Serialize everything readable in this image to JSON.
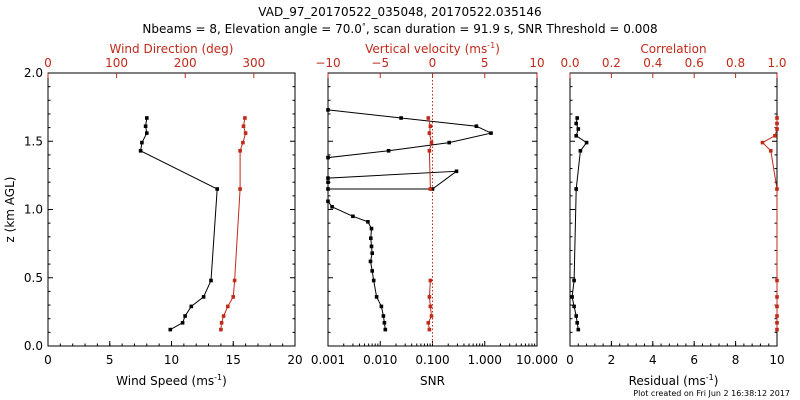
{
  "title": "VAD_97_20170522_035048, 20170522.035146",
  "subtitle_parts": [
    "Nbeams = 8, Elevation angle = 70.0",
    "°",
    ", scan duration = 91.9 s, SNR Threshold = 0.008"
  ],
  "footer": "Plot created on Fri Jun  2 16:38:12 2017",
  "colors": {
    "black": "#000000",
    "red": "#c02a1a"
  },
  "chart_data": [
    {
      "type": "line",
      "panel": "wind",
      "ylabel": "z (km AGL)",
      "ylim": [
        0.0,
        2.0
      ],
      "yticks": [
        "0.0",
        "0.5",
        "1.0",
        "1.5",
        "2.0"
      ],
      "xlabel": "Wind Speed (ms",
      "xlabel_sup": "-1",
      "xlabel_close": ")",
      "xlim": [
        0,
        20
      ],
      "xticks": [
        "0",
        "5",
        "10",
        "15",
        "20"
      ],
      "top_xlabel": "Wind Direction (deg)",
      "top_xlim": [
        0,
        360
      ],
      "top_xticks": [
        "0",
        "100",
        "200",
        "300"
      ],
      "series": [
        {
          "axis": "bottom",
          "color": "#000000",
          "connected": true,
          "x": [
            9.9,
            10.9,
            11.1,
            11.6,
            12.6,
            13.2,
            13.7,
            7.5,
            7.6,
            8.0,
            7.9,
            8.0
          ],
          "y": [
            0.12,
            0.17,
            0.22,
            0.29,
            0.36,
            0.48,
            1.15,
            1.43,
            1.49,
            1.56,
            1.61,
            1.67
          ]
        },
        {
          "axis": "top",
          "color": "#c02a1a",
          "connected": true,
          "x": [
            252,
            253,
            256,
            262,
            270,
            272,
            280,
            280,
            284,
            288,
            285,
            287
          ],
          "y": [
            0.12,
            0.17,
            0.22,
            0.29,
            0.36,
            0.48,
            1.15,
            1.43,
            1.49,
            1.56,
            1.61,
            1.67
          ]
        }
      ]
    },
    {
      "type": "line",
      "panel": "snr",
      "xscale": "log",
      "xlabel": "SNR",
      "xlim": [
        0.001,
        10.0
      ],
      "xticks": [
        "0.001",
        "0.010",
        "0.100",
        "1.000",
        "10.000"
      ],
      "top_xlabel": "Vertical velocity (ms",
      "top_xlabel_sup": "-1",
      "top_xlabel_close": ")",
      "top_xlim": [
        -10,
        10
      ],
      "top_xticks": [
        "−10",
        "−5",
        "0",
        "5",
        "10"
      ],
      "reference_line_x": 0,
      "series": [
        {
          "axis": "bottom",
          "color": "#000000",
          "connected": true,
          "x": [
            0.0125,
            0.012,
            0.0115,
            0.0105,
            0.0085,
            0.0075,
            0.007,
            0.0065,
            0.007,
            0.0068,
            0.0066,
            0.0068,
            0.0058,
            0.003,
            0.0012,
            0.001
          ],
          "y": [
            0.12,
            0.17,
            0.22,
            0.29,
            0.36,
            0.48,
            0.55,
            0.62,
            0.68,
            0.73,
            0.79,
            0.86,
            0.91,
            0.95,
            1.02,
            1.06
          ]
        },
        {
          "axis": "top",
          "color": "#000000",
          "connected": true,
          "x": [
            -10,
            0,
            2.3,
            -10,
            -10,
            -10,
            -4.2,
            1.6,
            5.6,
            4.2,
            -3.0,
            -10
          ],
          "y": [
            1.15,
            1.15,
            1.28,
            1.23,
            1.2,
            1.38,
            1.43,
            1.49,
            1.56,
            1.61,
            1.67,
            1.73
          ]
        },
        {
          "axis": "top",
          "color": "#c02a1a",
          "connected": true,
          "x": [
            -0.3,
            -0.4,
            -0.1,
            -0.2,
            -0.3,
            -0.2
          ],
          "y": [
            0.12,
            0.17,
            0.22,
            0.29,
            0.36,
            0.48
          ]
        },
        {
          "axis": "top",
          "color": "#c02a1a",
          "connected": true,
          "x": [
            -0.2,
            -0.3,
            -0.1,
            -0.3,
            -0.2,
            -0.4
          ],
          "y": [
            1.15,
            1.43,
            1.49,
            1.56,
            1.61,
            1.67
          ]
        }
      ]
    },
    {
      "type": "line",
      "panel": "residual",
      "xlabel": "Residual (ms",
      "xlabel_sup": "-1",
      "xlabel_close": ")",
      "xlim": [
        0,
        10
      ],
      "xticks": [
        "0",
        "2",
        "4",
        "6",
        "8",
        "10"
      ],
      "top_xlabel": "Correlation",
      "top_xlim": [
        0.0,
        1.0
      ],
      "top_xticks": [
        "0.0",
        "0.2",
        "0.4",
        "0.6",
        "0.8",
        "1.0"
      ],
      "series": [
        {
          "axis": "bottom",
          "color": "#000000",
          "connected": true,
          "x": [
            0.4,
            0.35,
            0.3,
            0.2,
            0.1,
            0.2,
            0.3,
            0.5,
            0.8,
            0.3,
            0.4,
            0.3,
            0.35
          ],
          "y": [
            0.12,
            0.17,
            0.22,
            0.29,
            0.36,
            0.48,
            1.15,
            1.43,
            1.49,
            1.54,
            1.59,
            1.63,
            1.67
          ]
        },
        {
          "axis": "top",
          "color": "#c02a1a",
          "connected": true,
          "x": [
            1.0,
            1.0,
            1.0,
            1.0,
            1.0,
            1.0,
            1.0,
            0.97,
            0.93,
            0.99,
            1.0,
            1.0,
            1.0
          ],
          "y": [
            0.12,
            0.17,
            0.22,
            0.29,
            0.36,
            0.48,
            1.15,
            1.43,
            1.49,
            1.54,
            1.59,
            1.63,
            1.67
          ]
        }
      ]
    }
  ]
}
